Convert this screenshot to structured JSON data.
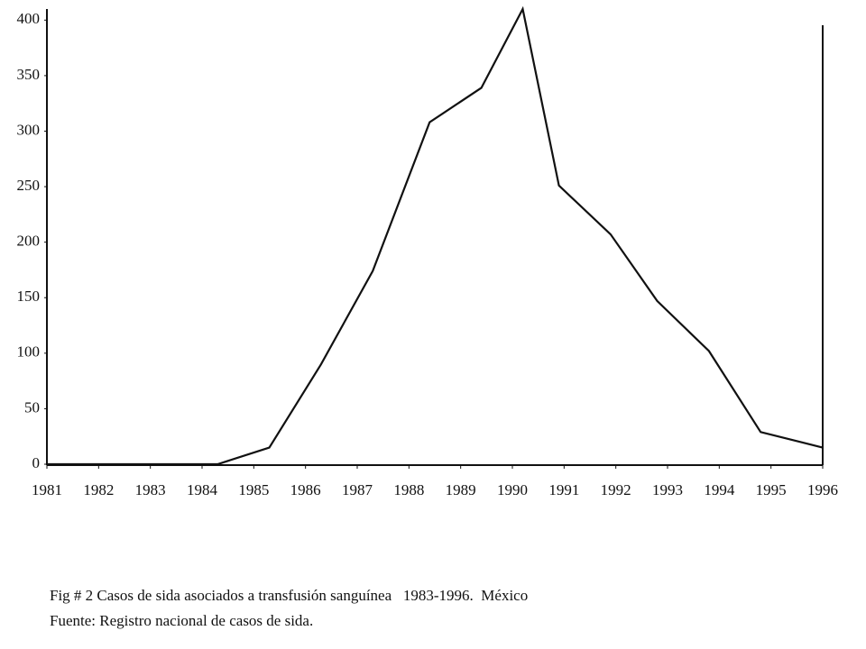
{
  "chart_data": {
    "type": "line",
    "x": [
      1981,
      1984.3,
      1985.3,
      1986.3,
      1987.3,
      1988.4,
      1989.4,
      1990.2,
      1990.9,
      1991.9,
      1992.8,
      1993.8,
      1994.8,
      1996
    ],
    "series": [
      {
        "color": "#111111",
        "values": [
          0,
          0,
          15,
          90,
          174,
          308,
          339,
          410,
          251,
          207,
          147,
          102,
          29,
          15
        ]
      }
    ],
    "xlim": [
      1981,
      1996
    ],
    "xticks": [
      1981,
      1982,
      1983,
      1984,
      1985,
      1986,
      1987,
      1988,
      1989,
      1990,
      1991,
      1992,
      1993,
      1994,
      1995,
      1996
    ],
    "ylim": [
      0,
      410
    ],
    "yticks": [
      0,
      50,
      100,
      150,
      200,
      250,
      300,
      350,
      400
    ],
    "grid": false,
    "caption": "Fig # 2 Casos de sida asociados a transfusión sanguínea   1983-1996.  México",
    "source": "Fuente: Registro nacional de casos de sida."
  }
}
